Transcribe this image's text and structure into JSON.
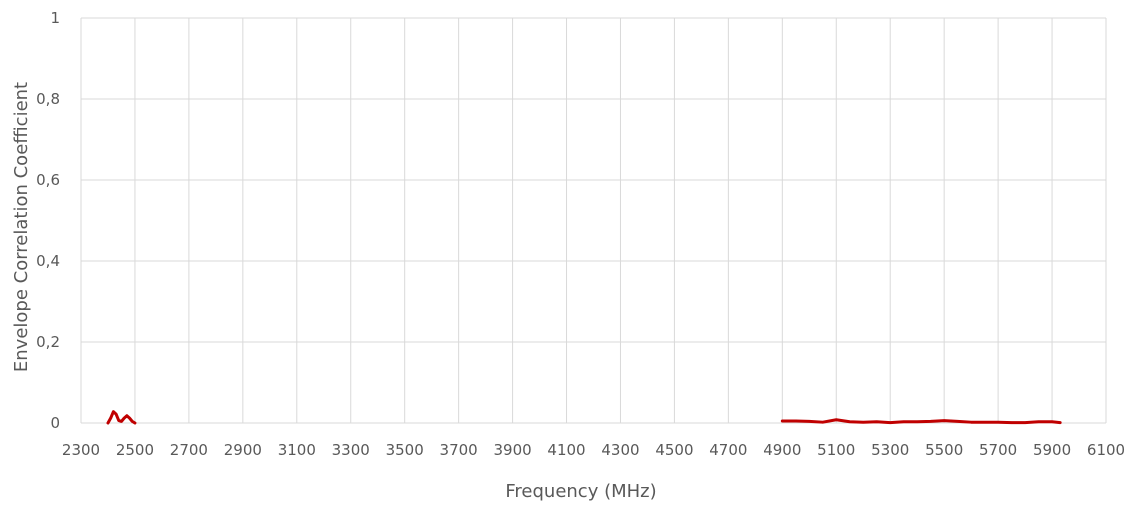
{
  "chart_data": {
    "type": "line",
    "title": "",
    "xlabel": "Frequency (MHz)",
    "ylabel": "Envelope Correlation Coefficient",
    "xlim": [
      2300,
      6100
    ],
    "ylim": [
      0,
      1
    ],
    "x_ticks": [
      "2300",
      "2500",
      "2700",
      "2900",
      "3100",
      "3300",
      "3500",
      "3700",
      "3900",
      "4100",
      "4300",
      "4500",
      "4700",
      "4900",
      "5100",
      "5300",
      "5500",
      "5700",
      "5900",
      "6100"
    ],
    "y_ticks": [
      "0",
      "0,2",
      "0,4",
      "0,6",
      "0,8",
      "1"
    ],
    "grid": true,
    "legend": "none",
    "series": [
      {
        "color": "#C00000",
        "segments": [
          {
            "x": [
              2400,
              2410,
              2420,
              2430,
              2440,
              2450,
              2460,
              2470,
              2480,
              2490,
              2500
            ],
            "y": [
              0.0,
              0.012,
              0.028,
              0.022,
              0.006,
              0.004,
              0.012,
              0.018,
              0.012,
              0.004,
              0.0
            ]
          },
          {
            "x": [
              4900,
              4950,
              5000,
              5050,
              5100,
              5150,
              5200,
              5250,
              5300,
              5350,
              5400,
              5450,
              5500,
              5550,
              5600,
              5650,
              5700,
              5750,
              5800,
              5850,
              5900,
              5930
            ],
            "y": [
              0.005,
              0.005,
              0.004,
              0.002,
              0.008,
              0.003,
              0.002,
              0.003,
              0.001,
              0.003,
              0.003,
              0.004,
              0.006,
              0.004,
              0.002,
              0.002,
              0.002,
              0.001,
              0.001,
              0.003,
              0.003,
              0.001
            ]
          }
        ]
      }
    ]
  }
}
